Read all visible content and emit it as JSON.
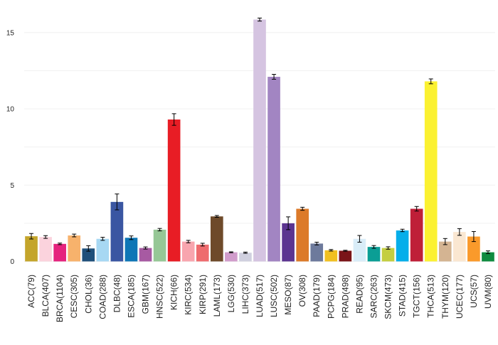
{
  "chart_data": {
    "type": "bar",
    "title": "",
    "xlabel": "",
    "ylabel": "",
    "ylim": [
      0,
      16.5
    ],
    "yticks": [
      0,
      5,
      10,
      15
    ],
    "grid": true,
    "categories": [
      "ACC(79)",
      "BLCA(407)",
      "BRCA(1104)",
      "CESC(305)",
      "CHOL(36)",
      "COAD(288)",
      "DLBC(48)",
      "ESCA(185)",
      "GBM(167)",
      "HNSC(522)",
      "KICH(66)",
      "KIRC(534)",
      "KIRP(291)",
      "LAML(173)",
      "LGG(530)",
      "LIHC(373)",
      "LUAD(517)",
      "LUSC(502)",
      "MESO(87)",
      "OV(308)",
      "PAAD(179)",
      "PCPG(184)",
      "PRAD(498)",
      "READ(95)",
      "SARC(263)",
      "SKCM(473)",
      "STAD(415)",
      "TGCT(156)",
      "THCA(513)",
      "THYM(120)",
      "UCEC(177)",
      "UCS(57)",
      "UVM(80)"
    ],
    "values": [
      1.65,
      1.6,
      1.15,
      1.7,
      0.85,
      1.48,
      3.9,
      1.55,
      0.88,
      2.08,
      9.3,
      1.3,
      1.1,
      2.95,
      0.6,
      0.57,
      15.85,
      12.1,
      2.5,
      3.45,
      1.17,
      0.73,
      0.7,
      1.48,
      0.95,
      0.88,
      2.03,
      3.45,
      11.8,
      1.3,
      1.93,
      1.63,
      0.6
    ],
    "errors": [
      0.18,
      0.09,
      0.05,
      0.09,
      0.18,
      0.1,
      0.52,
      0.12,
      0.07,
      0.08,
      0.38,
      0.08,
      0.09,
      0.06,
      0.03,
      0.04,
      0.1,
      0.16,
      0.42,
      0.1,
      0.09,
      0.05,
      0.03,
      0.22,
      0.09,
      0.08,
      0.08,
      0.15,
      0.16,
      0.2,
      0.22,
      0.33,
      0.09
    ],
    "colors": [
      "#c4a52b",
      "#fbd3dd",
      "#e5237e",
      "#f7b26c",
      "#1f4f7a",
      "#a7d8f3",
      "#3a56a2",
      "#0e76b6",
      "#a75aa2",
      "#96c796",
      "#e81d25",
      "#f8a5ae",
      "#ee6b6e",
      "#6e4a2a",
      "#d19ccb",
      "#d0d0df",
      "#d5c4e1",
      "#a285c2",
      "#5b3490",
      "#dc7a29",
      "#6d7a9c",
      "#f1c020",
      "#7a1418",
      "#d9edf8",
      "#0b9e95",
      "#c4ce40",
      "#05aeea",
      "#bf1f38",
      "#fbf131",
      "#d4b492",
      "#fae7d1",
      "#fa9a2b",
      "#0f8b3f"
    ]
  }
}
